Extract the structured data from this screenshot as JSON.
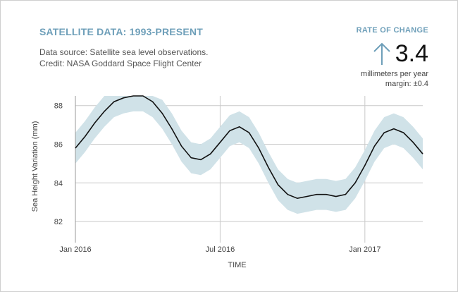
{
  "header": {
    "title": "SATELLITE DATA: 1993-PRESENT",
    "source_line": "Data source: Satellite sea level observations.",
    "credit_line": "Credit: NASA Goddard Space Flight Center"
  },
  "rate": {
    "label": "RATE OF CHANGE",
    "value": "3.4",
    "unit": "millimeters per year",
    "margin": "margin: ±0.4",
    "arrow_icon": "up-arrow-icon"
  },
  "colors": {
    "accent": "#6e9fb9",
    "band": "#d0e2e8",
    "line": "#111111",
    "grid": "#c9c9c9"
  },
  "chart_data": {
    "type": "line",
    "title": "",
    "xlabel": "TIME",
    "ylabel": "Sea Height Variation (mm)",
    "ylim": [
      81.2,
      88.5
    ],
    "xlim": [
      0,
      14.4
    ],
    "x_ticks": [
      {
        "x": 0,
        "label": "Jan 2016"
      },
      {
        "x": 6,
        "label": "Jul 2016"
      },
      {
        "x": 12,
        "label": "Jan 2017"
      }
    ],
    "y_ticks": [
      82,
      84,
      86,
      88
    ],
    "grid": true,
    "series": [
      {
        "x": [
          0,
          0.4,
          0.8,
          1.2,
          1.6,
          2.0,
          2.4,
          2.8,
          3.2,
          3.6,
          4.0,
          4.4,
          4.8,
          5.2,
          5.6,
          6.0,
          6.4,
          6.8,
          7.2,
          7.6,
          8.0,
          8.4,
          8.8,
          9.2,
          9.6,
          10.0,
          10.4,
          10.8,
          11.2,
          11.6,
          12.0,
          12.4,
          12.8,
          13.2,
          13.6,
          14.0,
          14.4
        ],
        "values": [
          85.8,
          86.4,
          87.1,
          87.7,
          88.2,
          88.4,
          88.5,
          88.5,
          88.2,
          87.6,
          86.8,
          85.9,
          85.3,
          85.2,
          85.5,
          86.1,
          86.7,
          86.9,
          86.6,
          85.8,
          84.8,
          83.9,
          83.4,
          83.2,
          83.3,
          83.4,
          83.4,
          83.3,
          83.4,
          84.0,
          84.9,
          85.9,
          86.6,
          86.8,
          86.6,
          86.1,
          85.5
        ]
      }
    ],
    "band": {
      "upper": [
        86.6,
        87.2,
        87.9,
        88.5,
        88.5,
        88.5,
        88.5,
        88.5,
        88.5,
        88.3,
        87.6,
        86.7,
        86.1,
        86.0,
        86.3,
        86.9,
        87.5,
        87.7,
        87.4,
        86.6,
        85.6,
        84.7,
        84.2,
        84.0,
        84.1,
        84.2,
        84.2,
        84.1,
        84.2,
        84.8,
        85.7,
        86.7,
        87.4,
        87.6,
        87.4,
        86.9,
        86.3
      ],
      "lower": [
        85.0,
        85.6,
        86.3,
        86.9,
        87.4,
        87.6,
        87.7,
        87.7,
        87.4,
        86.8,
        86.0,
        85.1,
        84.5,
        84.4,
        84.7,
        85.3,
        85.9,
        86.1,
        85.8,
        85.0,
        84.0,
        83.1,
        82.6,
        82.4,
        82.5,
        82.6,
        82.6,
        82.5,
        82.6,
        83.2,
        84.1,
        85.1,
        85.8,
        86.0,
        85.8,
        85.3,
        84.7
      ]
    }
  }
}
